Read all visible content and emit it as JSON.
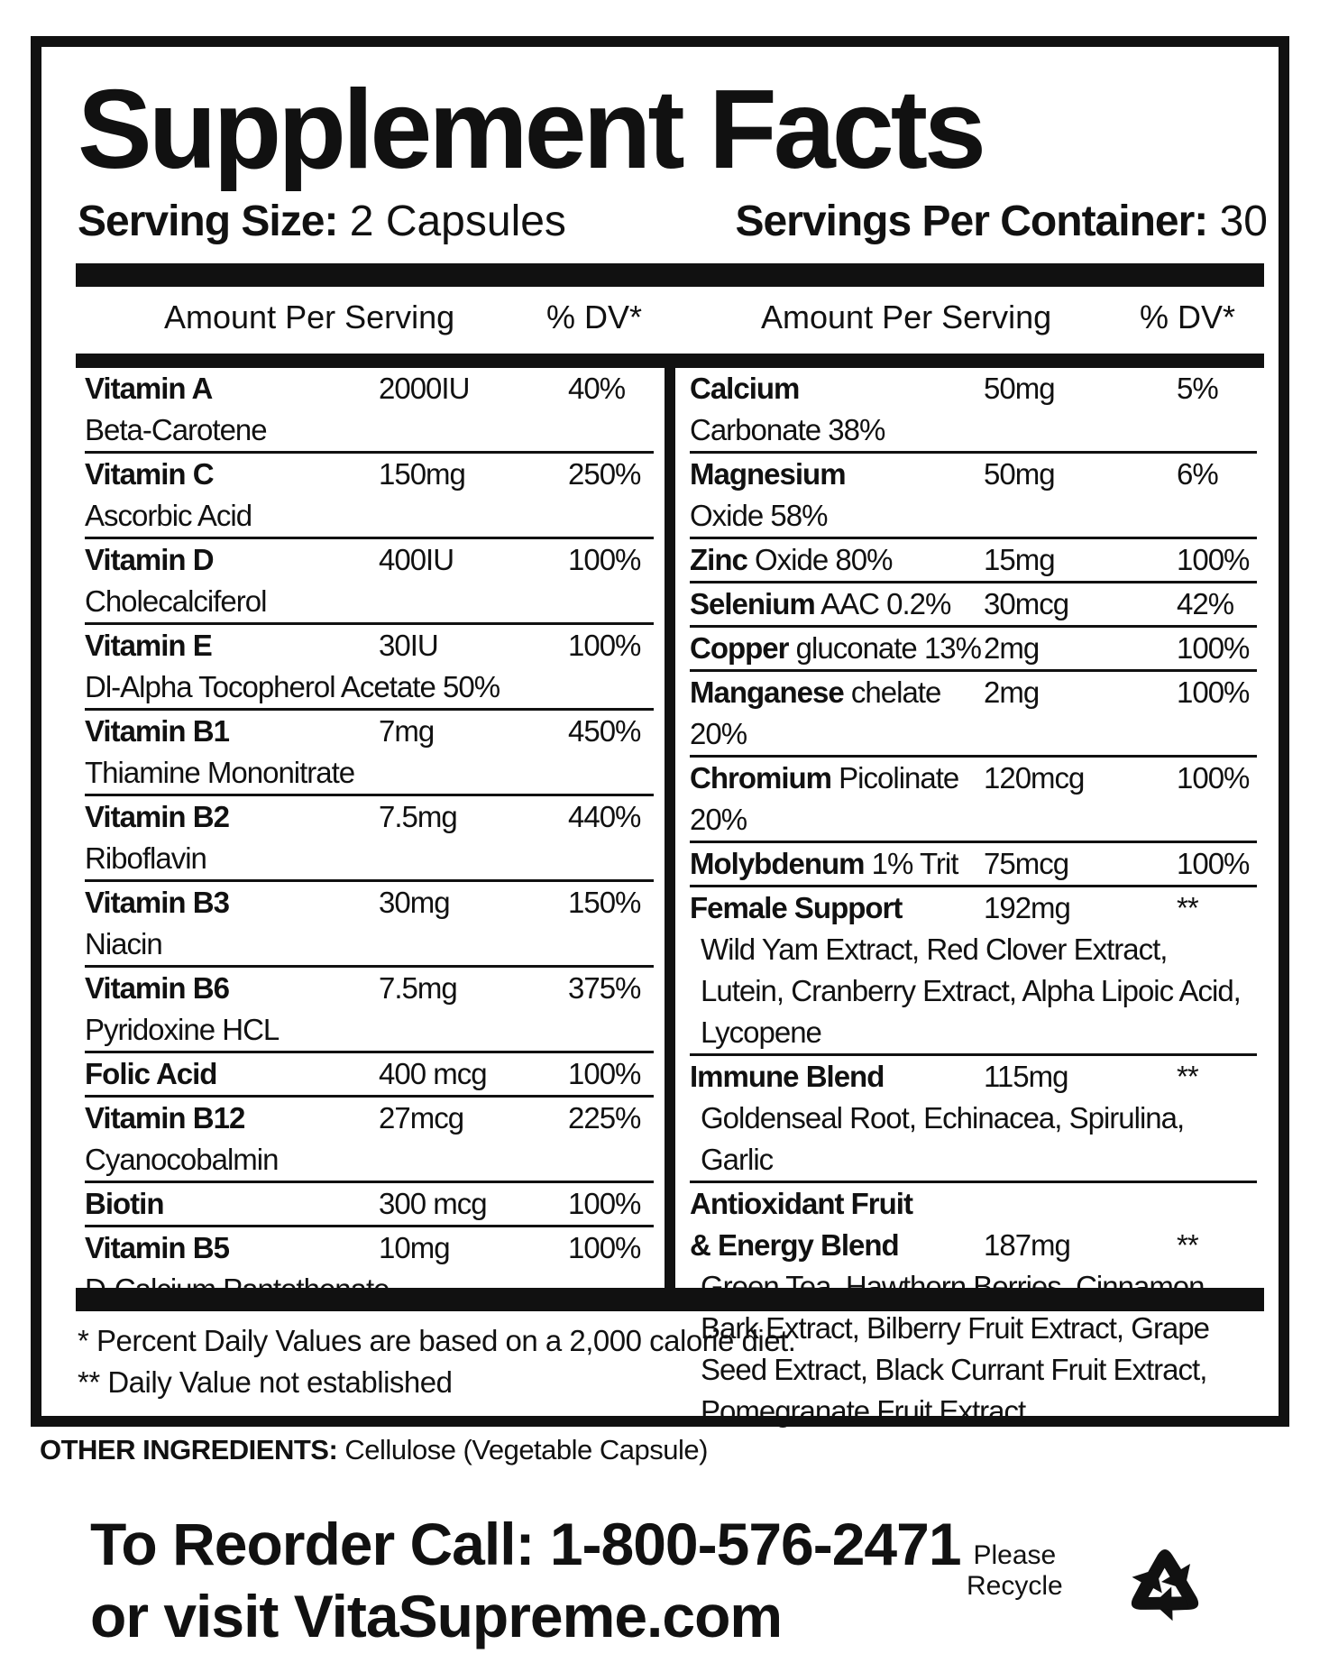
{
  "title": "Supplement Facts",
  "serving_size": {
    "label": "Serving Size:",
    "value": "2 Capsules"
  },
  "servings_per_container": {
    "label": "Servings Per Container:",
    "value": "30"
  },
  "columns": {
    "left": {
      "amount": "Amount Per Serving",
      "dv": "% DV*"
    },
    "right": {
      "amount": "Amount Per Serving",
      "dv": "% DV*"
    }
  },
  "left_rows": [
    {
      "name": "Vitamin A",
      "amount": "2000IU",
      "dv": "40%",
      "detail": "Beta-Carotene"
    },
    {
      "name": "Vitamin C",
      "amount": "150mg",
      "dv": "250%",
      "detail": "Ascorbic Acid"
    },
    {
      "name": "Vitamin D",
      "amount": "400IU",
      "dv": "100%",
      "detail": "Cholecalciferol"
    },
    {
      "name": "Vitamin E",
      "amount": "30IU",
      "dv": "100%",
      "detail": "Dl-Alpha Tocopherol Acetate 50%"
    },
    {
      "name": "Vitamin B1",
      "amount": "7mg",
      "dv": "450%",
      "detail": "Thiamine Mononitrate"
    },
    {
      "name": "Vitamin B2",
      "amount": "7.5mg",
      "dv": "440%",
      "detail": "Riboflavin"
    },
    {
      "name": "Vitamin B3",
      "amount": "30mg",
      "dv": "150%",
      "detail": "Niacin"
    },
    {
      "name": "Vitamin B6",
      "amount": "7.5mg",
      "dv": "375%",
      "detail": "Pyridoxine HCL"
    },
    {
      "name": "Folic Acid",
      "amount": "400 mcg",
      "dv": "100%"
    },
    {
      "name": "Vitamin B12",
      "amount": "27mcg",
      "dv": "225%",
      "detail": "Cyanocobalmin"
    },
    {
      "name": "Biotin",
      "amount": "300 mcg",
      "dv": "100%"
    },
    {
      "name": "Vitamin B5",
      "amount": "10mg",
      "dv": "100%",
      "detail": "D-Calcium Pantothenate"
    }
  ],
  "right_rows": [
    {
      "name": "Calcium",
      "amount": "50mg",
      "dv": "5%",
      "detail": "Carbonate 38%"
    },
    {
      "name": "Magnesium",
      "amount": "50mg",
      "dv": "6%",
      "detail": "Oxide 58%"
    },
    {
      "name": "Zinc",
      "inline_detail": "Oxide 80%",
      "amount": "15mg",
      "dv": "100%"
    },
    {
      "name": "Selenium",
      "inline_detail": "AAC 0.2%",
      "amount": "30mcg",
      "dv": "42%"
    },
    {
      "name": "Copper",
      "inline_detail": "gluconate 13%",
      "amount": "2mg",
      "dv": "100%"
    },
    {
      "name": "Manganese",
      "inline_detail": "chelate 20%",
      "amount": "2mg",
      "dv": "100%"
    },
    {
      "name": "Chromium",
      "inline_detail": "Picolinate 20%",
      "amount": "120mcg",
      "dv": "100%"
    },
    {
      "name": "Molybdenum",
      "inline_detail": "1% Trit",
      "amount": "75mcg",
      "dv": "100%"
    },
    {
      "name": "Female Support",
      "amount": "192mg",
      "dv": "**",
      "ingredients": "Wild Yam Extract, Red Clover Extract, Lutein, Cranberry Extract, Alpha Lipoic Acid, Lycopene"
    },
    {
      "name": "Immune Blend",
      "amount": "115mg",
      "dv": "**",
      "ingredients": "Goldenseal Root, Echinacea, Spirulina, Garlic"
    },
    {
      "name": [
        "Antioxidant Fruit",
        "& Energy Blend"
      ],
      "amount": "187mg",
      "dv": "**",
      "ingredients": "Green Tea, Hawthorn Berries, Cinnamon Bark Extract, Bilberry Fruit Extract, Grape Seed Extract, Black Currant Fruit Extract, Pomegranate Fruit Extract"
    }
  ],
  "footnotes": [
    "* Percent Daily Values are based on a 2,000 calorie diet.",
    "** Daily Value not established"
  ],
  "other_ingredients": {
    "label": "OTHER INGREDIENTS:",
    "value": "Cellulose (Vegetable Capsule)"
  },
  "reorder": [
    "To Reorder Call: 1-800-576-2471",
    "or visit VitaSupreme.com"
  ],
  "recycle": [
    "Please",
    "Recycle"
  ]
}
